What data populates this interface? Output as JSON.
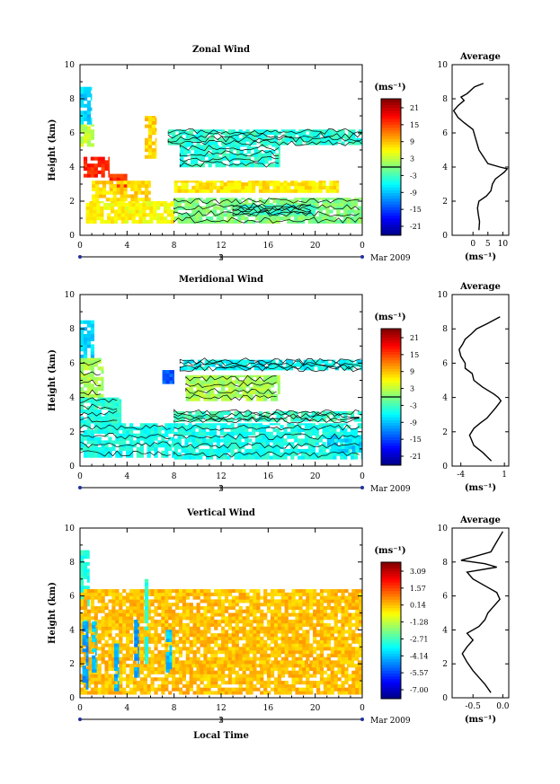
{
  "chart_data": [
    {
      "type": "heatmap",
      "title": "Zonal Wind",
      "ylabel": "Height (km)",
      "ylim": [
        0,
        10
      ],
      "xlim": [
        0,
        24
      ],
      "x_ticks": [
        "0",
        "4",
        "8",
        "12",
        "16",
        "20",
        "0"
      ],
      "date_labels": [
        "3"
      ],
      "date_suffix": "Mar 2009",
      "colorbar_unit": "(ms⁻¹)",
      "colorbar_ticks": [
        "21",
        "15",
        "9",
        "3",
        "-3",
        "-9",
        "-15",
        "-21"
      ],
      "colorbar_range": [
        -24,
        24
      ],
      "colorbar_zero_line": 0,
      "contour": "zero-line",
      "regions": [
        {
          "x0": 0,
          "x1": 1,
          "y0": 6.5,
          "y1": 8.7,
          "v": -8
        },
        {
          "x0": 0,
          "x1": 1.2,
          "y0": 5.2,
          "y1": 6.5,
          "v": 3
        },
        {
          "x0": 0.3,
          "x1": 2.5,
          "y0": 3.4,
          "y1": 4.6,
          "v": 16
        },
        {
          "x0": 2.5,
          "x1": 4,
          "y0": 2.8,
          "y1": 3.6,
          "v": 16
        },
        {
          "x0": 1,
          "x1": 6,
          "y0": 2,
          "y1": 3.2,
          "v": 8
        },
        {
          "x0": 0.5,
          "x1": 8,
          "y0": 0.7,
          "y1": 2,
          "v": 6
        },
        {
          "x0": 5.5,
          "x1": 6.5,
          "y0": 4.5,
          "y1": 7,
          "v": 8
        },
        {
          "x0": 7.5,
          "x1": 24,
          "y0": 5.3,
          "y1": 6.2,
          "v": -4
        },
        {
          "x0": 8.5,
          "x1": 17,
          "y0": 4,
          "y1": 5.3,
          "v": -4
        },
        {
          "x0": 8,
          "x1": 22,
          "y0": 2.5,
          "y1": 3.2,
          "v": 7
        },
        {
          "x0": 8,
          "x1": 24,
          "y0": 0.7,
          "y1": 2.2,
          "v": 0
        },
        {
          "x0": 13,
          "x1": 20,
          "y0": 1.2,
          "y1": 1.8,
          "v": -3
        }
      ],
      "average_profile": {
        "title": "Average",
        "xlabel": "(ms⁻¹)",
        "x_ticks": [
          "0",
          "5",
          "10"
        ],
        "xlim": [
          -7,
          12
        ],
        "ylim": [
          0,
          10
        ],
        "x": [
          2,
          2.2,
          1.8,
          1.5,
          2,
          4.5,
          6,
          6.5,
          7.5,
          9,
          10.5,
          11.5,
          9,
          5,
          3.5,
          2,
          1,
          0,
          -3,
          -5,
          -6.5,
          -5,
          -3,
          -4,
          -2,
          0.5,
          3.5
        ],
        "y": [
          0.3,
          0.8,
          1.2,
          1.6,
          2.0,
          2.3,
          2.6,
          3.0,
          3.3,
          3.5,
          3.7,
          3.9,
          4.0,
          4.2,
          4.6,
          5.0,
          5.6,
          6.2,
          6.6,
          6.9,
          7.3,
          7.6,
          7.9,
          8.1,
          8.3,
          8.7,
          8.9
        ]
      }
    },
    {
      "type": "heatmap",
      "title": "Meridional Wind",
      "ylabel": "Height (km)",
      "ylim": [
        0,
        10
      ],
      "xlim": [
        0,
        24
      ],
      "x_ticks": [
        "0",
        "4",
        "8",
        "12",
        "16",
        "20",
        "0"
      ],
      "date_labels": [
        "3"
      ],
      "date_suffix": "Mar 2009",
      "colorbar_unit": "(ms⁻¹)",
      "colorbar_ticks": [
        "21",
        "15",
        "9",
        "3",
        "-3",
        "-9",
        "-15",
        "-21"
      ],
      "colorbar_range": [
        -24,
        24
      ],
      "colorbar_zero_line": 0,
      "contour": "zero-line",
      "regions": [
        {
          "x0": 0,
          "x1": 1.2,
          "y0": 6.3,
          "y1": 8.5,
          "v": -8
        },
        {
          "x0": 0,
          "x1": 2,
          "y0": 4,
          "y1": 6.3,
          "v": 2
        },
        {
          "x0": 0,
          "x1": 3.5,
          "y0": 2.5,
          "y1": 4,
          "v": -4
        },
        {
          "x0": 0,
          "x1": 8,
          "y0": 0.5,
          "y1": 2.5,
          "v": -5
        },
        {
          "x0": 7,
          "x1": 8,
          "y0": 4.8,
          "y1": 5.6,
          "v": -14
        },
        {
          "x0": 8.5,
          "x1": 24,
          "y0": 5.6,
          "y1": 6.2,
          "v": -6
        },
        {
          "x0": 9,
          "x1": 17,
          "y0": 3.8,
          "y1": 5.3,
          "v": 2
        },
        {
          "x0": 8,
          "x1": 24,
          "y0": 2.6,
          "y1": 3.2,
          "v": -3
        },
        {
          "x0": 8,
          "x1": 24,
          "y0": 0.4,
          "y1": 2.5,
          "v": -5
        },
        {
          "x0": 21,
          "x1": 24,
          "y0": 0.8,
          "y1": 1.8,
          "v": -8
        }
      ],
      "average_profile": {
        "title": "Average",
        "xlabel": "(ms⁻¹)",
        "x_ticks": [
          "-4",
          "1"
        ],
        "xlim": [
          -5,
          1.5
        ],
        "ylim": [
          0,
          10
        ],
        "x": [
          -0.5,
          -1.5,
          -2.5,
          -3,
          -2.5,
          -1.8,
          -1,
          -0.5,
          0,
          0.3,
          0.6,
          0.3,
          -0.2,
          -1.5,
          -2.5,
          -2.7,
          -3.5,
          -3.5,
          -4,
          -4.2,
          -3.8,
          -3.5,
          -2.8,
          -2.2,
          -1,
          0.5
        ],
        "y": [
          0.3,
          0.8,
          1.2,
          1.8,
          2.2,
          2.5,
          2.8,
          3.1,
          3.4,
          3.6,
          3.8,
          4.0,
          4.2,
          4.6,
          5.0,
          5.4,
          5.7,
          6.0,
          6.4,
          6.8,
          7.1,
          7.4,
          7.7,
          8.0,
          8.3,
          8.7
        ]
      }
    },
    {
      "type": "heatmap",
      "title": "Vertical Wind",
      "xlabel": "Local Time",
      "ylabel": "Height (km)",
      "ylim": [
        0,
        10
      ],
      "xlim": [
        0,
        24
      ],
      "x_ticks": [
        "0",
        "4",
        "8",
        "12",
        "16",
        "20",
        "0"
      ],
      "date_labels": [
        "3"
      ],
      "date_suffix": "Mar 2009",
      "colorbar_unit": "(ms⁻¹)",
      "colorbar_ticks": [
        "3.09",
        "1.57",
        "0.14",
        "-1.28",
        "-2.71",
        "-4.14",
        "-5.57",
        "-7.00"
      ],
      "colorbar_range": [
        -7.7,
        3.8
      ],
      "regions": [
        {
          "x0": 0,
          "x1": 0.8,
          "y0": 4.2,
          "y1": 8.7,
          "v": -3
        },
        {
          "x0": 0,
          "x1": 24,
          "y0": 0.2,
          "y1": 6.4,
          "v": 0.2
        },
        {
          "x0": 0.2,
          "x1": 0.7,
          "y0": 0.5,
          "y1": 4.5,
          "v": -4.5
        },
        {
          "x0": 1,
          "x1": 1.4,
          "y0": 1.5,
          "y1": 4.5,
          "v": -4
        },
        {
          "x0": 2.9,
          "x1": 3.3,
          "y0": 0.4,
          "y1": 3.2,
          "v": -4.3
        },
        {
          "x0": 4.6,
          "x1": 5,
          "y0": 1.2,
          "y1": 4.6,
          "v": -4.5
        },
        {
          "x0": 5.5,
          "x1": 5.8,
          "y0": 2,
          "y1": 7,
          "v": -3
        },
        {
          "x0": 7.3,
          "x1": 7.8,
          "y0": 1.5,
          "y1": 4,
          "v": -4
        },
        {
          "x0": 8,
          "x1": 24,
          "y0": 1.8,
          "y1": 2.2,
          "v": 0.2
        }
      ],
      "average_profile": {
        "title": "Average",
        "xlabel": "(ms⁻¹)",
        "x_ticks": [
          "-0.5",
          "0.0"
        ],
        "xlim": [
          -0.85,
          0.1
        ],
        "ylim": [
          0,
          10
        ],
        "x": [
          -0.2,
          -0.3,
          -0.4,
          -0.5,
          -0.6,
          -0.68,
          -0.6,
          -0.5,
          -0.6,
          -0.4,
          -0.3,
          -0.25,
          -0.15,
          -0.05,
          -0.1,
          -0.3,
          -0.5,
          -0.6,
          -0.1,
          -0.3,
          -0.7,
          -0.2,
          -0.1,
          0.0
        ],
        "y": [
          0.3,
          0.8,
          1.2,
          1.6,
          2.1,
          2.6,
          3.0,
          3.4,
          3.8,
          4.2,
          4.6,
          5.0,
          5.4,
          5.8,
          6.2,
          6.6,
          7.0,
          7.4,
          7.7,
          7.9,
          8.1,
          8.6,
          9.2,
          9.8
        ]
      }
    }
  ]
}
